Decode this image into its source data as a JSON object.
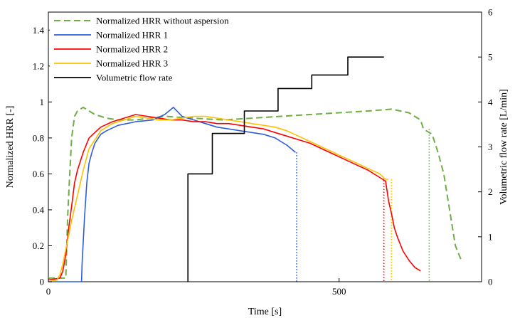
{
  "chart_data": {
    "type": "line",
    "title": "",
    "xlabel": "Time [s]",
    "ylabel": "Normalized HRR [-]",
    "y2label": "Volumetric flow rate [L/min]",
    "xlim": [
      0,
      745
    ],
    "ylim": [
      0,
      1.5
    ],
    "y2lim": [
      0,
      6
    ],
    "x_ticks": [
      0,
      500
    ],
    "y_ticks": [
      0,
      0.2,
      0.4,
      0.6,
      0.8,
      1,
      1.2,
      1.4
    ],
    "y_tick_labels": [
      "0",
      "0.2",
      "0.4",
      "0.6",
      "0.8",
      "1",
      "1.2",
      "1.4"
    ],
    "y2_ticks": [
      0,
      1,
      2,
      3,
      4,
      5,
      6
    ],
    "y2_tick_labels": [
      "0",
      "1",
      "2",
      "3",
      "4",
      "5",
      "6"
    ],
    "grid": false,
    "legend_position": "top-left",
    "series": [
      {
        "name": "Normalized HRR without aspersion",
        "axis": "left",
        "color": "#70ad47",
        "style": "dashed",
        "x": [
          0,
          30,
          33,
          36,
          40,
          45,
          50,
          60,
          70,
          80,
          90,
          100,
          120,
          150,
          200,
          250,
          300,
          350,
          400,
          450,
          500,
          550,
          590,
          620,
          640,
          645,
          650,
          660,
          670,
          680,
          690,
          700,
          710
        ],
        "y": [
          0.02,
          0.02,
          0.35,
          0.55,
          0.8,
          0.92,
          0.95,
          0.97,
          0.95,
          0.93,
          0.92,
          0.91,
          0.9,
          0.9,
          0.92,
          0.91,
          0.9,
          0.91,
          0.92,
          0.93,
          0.94,
          0.95,
          0.96,
          0.94,
          0.9,
          0.85,
          0.84,
          0.82,
          0.72,
          0.6,
          0.4,
          0.2,
          0.12
        ]
      },
      {
        "name": "Normalized HRR 1",
        "axis": "left",
        "color": "#2e5cdb",
        "style": "solid",
        "x": [
          0,
          57,
          58,
          62,
          66,
          70,
          75,
          80,
          90,
          100,
          120,
          150,
          180,
          200,
          215,
          230,
          250,
          270,
          290,
          310,
          330,
          350,
          370,
          390,
          410,
          425
        ],
        "y": [
          0,
          0,
          0.1,
          0.35,
          0.55,
          0.66,
          0.72,
          0.77,
          0.82,
          0.84,
          0.87,
          0.89,
          0.9,
          0.93,
          0.97,
          0.92,
          0.9,
          0.88,
          0.86,
          0.85,
          0.84,
          0.83,
          0.82,
          0.8,
          0.76,
          0.72
        ]
      },
      {
        "name": "Normalized HRR 2",
        "axis": "left",
        "color": "#ff0000",
        "style": "solid",
        "x": [
          0,
          20,
          25,
          30,
          35,
          40,
          45,
          50,
          60,
          70,
          90,
          110,
          130,
          150,
          170,
          190,
          210,
          230,
          250,
          270,
          290,
          310,
          330,
          350,
          370,
          390,
          410,
          430,
          450,
          470,
          490,
          510,
          530,
          550,
          570,
          580,
          585,
          590,
          595,
          600,
          610,
          620,
          630,
          640
        ],
        "y": [
          0.01,
          0.02,
          0.06,
          0.15,
          0.3,
          0.42,
          0.55,
          0.62,
          0.72,
          0.8,
          0.86,
          0.89,
          0.91,
          0.93,
          0.92,
          0.91,
          0.9,
          0.9,
          0.89,
          0.89,
          0.88,
          0.88,
          0.87,
          0.86,
          0.85,
          0.83,
          0.81,
          0.79,
          0.77,
          0.74,
          0.71,
          0.68,
          0.65,
          0.62,
          0.58,
          0.56,
          0.45,
          0.38,
          0.3,
          0.25,
          0.17,
          0.12,
          0.08,
          0.06
        ]
      },
      {
        "name": "Normalized HRR 3",
        "axis": "left",
        "color": "#ffc000",
        "style": "solid",
        "x": [
          0,
          15,
          20,
          25,
          30,
          35,
          40,
          50,
          60,
          70,
          90,
          110,
          130,
          150,
          170,
          190,
          210,
          230,
          250,
          270,
          290,
          310,
          330,
          350,
          370,
          390,
          410,
          430,
          450,
          470,
          490,
          510,
          530,
          550,
          570,
          580,
          585
        ],
        "y": [
          0,
          0.01,
          0.04,
          0.1,
          0.18,
          0.26,
          0.34,
          0.48,
          0.62,
          0.74,
          0.84,
          0.88,
          0.9,
          0.92,
          0.91,
          0.9,
          0.9,
          0.91,
          0.92,
          0.92,
          0.91,
          0.9,
          0.89,
          0.88,
          0.87,
          0.86,
          0.84,
          0.81,
          0.78,
          0.75,
          0.72,
          0.69,
          0.66,
          0.63,
          0.6,
          0.57,
          0.57
        ]
      },
      {
        "name": "Volumetric flow rate",
        "axis": "right",
        "color": "#000000",
        "style": "solid",
        "x": [
          240,
          240,
          282,
          282,
          337,
          337,
          395,
          395,
          453,
          453,
          515,
          515,
          577
        ],
        "y": [
          0,
          2.4,
          2.4,
          3.3,
          3.3,
          3.8,
          3.8,
          4.3,
          4.3,
          4.6,
          4.6,
          5.0,
          5.0
        ]
      }
    ],
    "vertical_markers": [
      {
        "x": 427,
        "y": 0.72,
        "color": "#2e5cdb",
        "style": "dotted"
      },
      {
        "x": 577,
        "y": 0.58,
        "color": "#ff0000",
        "style": "dotted"
      },
      {
        "x": 590,
        "y": 0.57,
        "color": "#ffc000",
        "style": "dotted"
      },
      {
        "x": 655,
        "y": 0.85,
        "color": "#70ad47",
        "style": "dotted"
      }
    ]
  }
}
